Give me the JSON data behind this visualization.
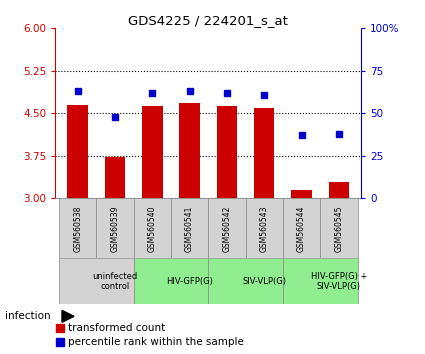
{
  "title": "GDS4225 / 224201_s_at",
  "samples": [
    "GSM560538",
    "GSM560539",
    "GSM560540",
    "GSM560541",
    "GSM560542",
    "GSM560543",
    "GSM560544",
    "GSM560545"
  ],
  "red_values": [
    4.65,
    3.72,
    4.62,
    4.68,
    4.62,
    4.6,
    3.15,
    3.28
  ],
  "blue_values": [
    63,
    48,
    62,
    63,
    62,
    61,
    37,
    38
  ],
  "ylim_left": [
    3,
    6
  ],
  "ylim_right": [
    0,
    100
  ],
  "yticks_left": [
    3,
    3.75,
    4.5,
    5.25,
    6
  ],
  "yticks_right": [
    0,
    25,
    50,
    75,
    100
  ],
  "grid_values": [
    3.75,
    4.5,
    5.25
  ],
  "bar_color": "#cc0000",
  "dot_color": "#0000cc",
  "bar_width": 0.55,
  "groups": [
    {
      "label": "uninfected\ncontrol",
      "start": 0,
      "end": 2,
      "color": "#d3d3d3"
    },
    {
      "label": "HIV-GFP(G)",
      "start": 2,
      "end": 4,
      "color": "#90ee90"
    },
    {
      "label": "SIV-VLP(G)",
      "start": 4,
      "end": 6,
      "color": "#90ee90"
    },
    {
      "label": "HIV-GFP(G) +\nSIV-VLP(G)",
      "start": 6,
      "end": 8,
      "color": "#90ee90"
    }
  ],
  "legend_red": "transformed count",
  "legend_blue": "percentile rank within the sample",
  "infection_label": "infection",
  "left_tick_color": "#cc0000",
  "right_tick_color": "#0000cc",
  "sample_box_color": "#d3d3d3",
  "border_color": "#888888"
}
